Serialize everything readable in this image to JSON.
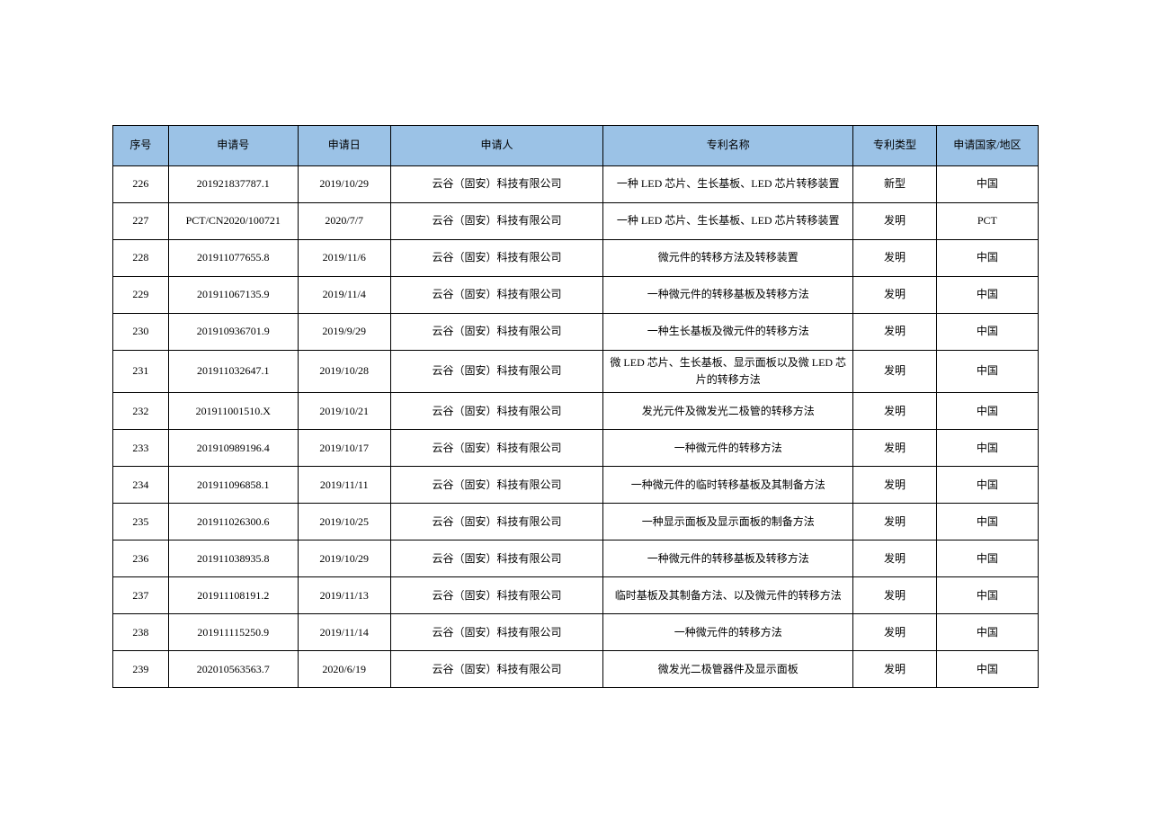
{
  "headers": {
    "seq": "序号",
    "appno": "申请号",
    "date": "申请日",
    "applicant": "申请人",
    "name": "专利名称",
    "type": "专利类型",
    "country": "申请国家/地区"
  },
  "rows": [
    {
      "seq": "226",
      "appno": "201921837787.1",
      "date": "2019/10/29",
      "applicant": "云谷（固安）科技有限公司",
      "name": "一种 LED 芯片、生长基板、LED 芯片转移装置",
      "type": "新型",
      "country": "中国"
    },
    {
      "seq": "227",
      "appno": "PCT/CN2020/100721",
      "date": "2020/7/7",
      "applicant": "云谷（固安）科技有限公司",
      "name": "一种 LED 芯片、生长基板、LED 芯片转移装置",
      "type": "发明",
      "country": "PCT"
    },
    {
      "seq": "228",
      "appno": "201911077655.8",
      "date": "2019/11/6",
      "applicant": "云谷（固安）科技有限公司",
      "name": "微元件的转移方法及转移装置",
      "type": "发明",
      "country": "中国"
    },
    {
      "seq": "229",
      "appno": "201911067135.9",
      "date": "2019/11/4",
      "applicant": "云谷（固安）科技有限公司",
      "name": "一种微元件的转移基板及转移方法",
      "type": "发明",
      "country": "中国"
    },
    {
      "seq": "230",
      "appno": "201910936701.9",
      "date": "2019/9/29",
      "applicant": "云谷（固安）科技有限公司",
      "name": "一种生长基板及微元件的转移方法",
      "type": "发明",
      "country": "中国"
    },
    {
      "seq": "231",
      "appno": "201911032647.1",
      "date": "2019/10/28",
      "applicant": "云谷（固安）科技有限公司",
      "name": "微 LED 芯片、生长基板、显示面板以及微 LED 芯片的转移方法",
      "type": "发明",
      "country": "中国"
    },
    {
      "seq": "232",
      "appno": "201911001510.X",
      "date": "2019/10/21",
      "applicant": "云谷（固安）科技有限公司",
      "name": "发光元件及微发光二极管的转移方法",
      "type": "发明",
      "country": "中国"
    },
    {
      "seq": "233",
      "appno": "201910989196.4",
      "date": "2019/10/17",
      "applicant": "云谷（固安）科技有限公司",
      "name": "一种微元件的转移方法",
      "type": "发明",
      "country": "中国"
    },
    {
      "seq": "234",
      "appno": "201911096858.1",
      "date": "2019/11/11",
      "applicant": "云谷（固安）科技有限公司",
      "name": "一种微元件的临时转移基板及其制备方法",
      "type": "发明",
      "country": "中国"
    },
    {
      "seq": "235",
      "appno": "201911026300.6",
      "date": "2019/10/25",
      "applicant": "云谷（固安）科技有限公司",
      "name": "一种显示面板及显示面板的制备方法",
      "type": "发明",
      "country": "中国"
    },
    {
      "seq": "236",
      "appno": "201911038935.8",
      "date": "2019/10/29",
      "applicant": "云谷（固安）科技有限公司",
      "name": "一种微元件的转移基板及转移方法",
      "type": "发明",
      "country": "中国"
    },
    {
      "seq": "237",
      "appno": "201911108191.2",
      "date": "2019/11/13",
      "applicant": "云谷（固安）科技有限公司",
      "name": "临时基板及其制备方法、以及微元件的转移方法",
      "type": "发明",
      "country": "中国"
    },
    {
      "seq": "238",
      "appno": "201911115250.9",
      "date": "2019/11/14",
      "applicant": "云谷（固安）科技有限公司",
      "name": "一种微元件的转移方法",
      "type": "发明",
      "country": "中国"
    },
    {
      "seq": "239",
      "appno": "202010563563.7",
      "date": "2020/6/19",
      "applicant": "云谷（固安）科技有限公司",
      "name": "微发光二极管器件及显示面板",
      "type": "发明",
      "country": "中国"
    }
  ]
}
